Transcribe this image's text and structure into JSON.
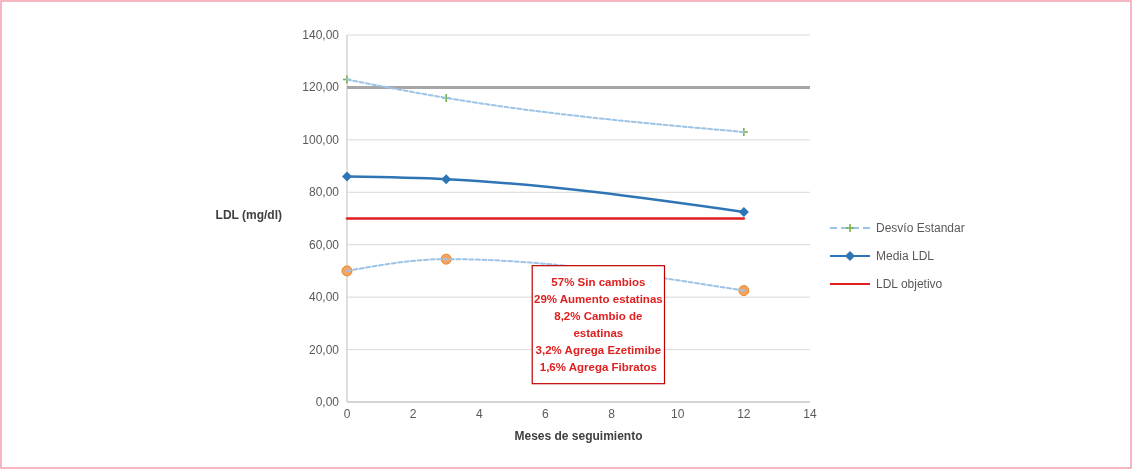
{
  "chart_data": {
    "type": "line",
    "xlabel": "Meses de seguimiento",
    "ylabel": "LDL (mg/dl)",
    "x": [
      0,
      3,
      12
    ],
    "series": [
      {
        "name": "Desvío Estandar",
        "color": "#9dc3e6",
        "values": [
          123,
          116,
          103
        ],
        "line_style": "dashed",
        "marker": "cross"
      },
      {
        "color": "#9dc3e6",
        "values": [
          50,
          54.5,
          42.5
        ],
        "line_style": "dashed",
        "marker": "circle"
      },
      {
        "name": "Media LDL",
        "color": "#2e75b6",
        "values": [
          86,
          85,
          72.5
        ],
        "line_style": "solid",
        "marker": "diamond"
      },
      {
        "name": "LDL objetivo",
        "color": "#e02020",
        "x": [
          0,
          12
        ],
        "values": [
          70,
          70
        ],
        "line_style": "solid",
        "marker": "none"
      }
    ],
    "ref_lines": [
      {
        "axis": "y",
        "value": 120,
        "color": "#a6a6a6"
      }
    ],
    "annotations": [
      {
        "text": "57% Sin cambios\n29% Aumento estatinas\n8,2% Cambio de\nestatinas\n3,2% Agrega Ezetimibe\n1,6% Agrega Fibratos"
      }
    ],
    "xlim": [
      0,
      14
    ],
    "xticks": [
      0,
      2,
      4,
      6,
      8,
      10,
      12,
      14
    ],
    "ylim": [
      0,
      140
    ],
    "yticks": [
      {
        "value": 0,
        "label": "0,00"
      },
      {
        "value": 20,
        "label": "20,00"
      },
      {
        "value": 40,
        "label": "40,00"
      },
      {
        "value": 60,
        "label": "60,00"
      },
      {
        "value": 80,
        "label": "80,00"
      },
      {
        "value": 100,
        "label": "100,00"
      },
      {
        "value": 120,
        "label": "120,00"
      },
      {
        "value": 140,
        "label": "140,00"
      }
    ],
    "grid": "y",
    "legend": "right"
  }
}
